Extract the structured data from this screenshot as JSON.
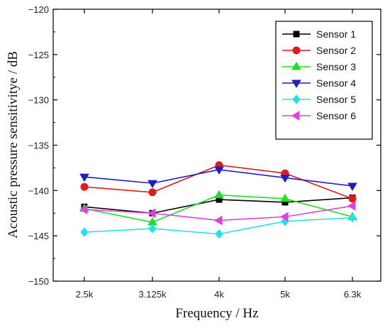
{
  "chart_data": {
    "type": "line",
    "title": "",
    "xlabel": "Frequency / Hz",
    "ylabel": "Acoustic pressure sensitivitye / dB",
    "categories": [
      "2.5k",
      "3.125k",
      "4k",
      "5k",
      "6.3k"
    ],
    "ylim": [
      -150,
      -120
    ],
    "yticks": [
      -150,
      -145,
      -140,
      -135,
      -130,
      -125,
      -120
    ],
    "ytick_labels": [
      "−150",
      "−145",
      "−140",
      "−135",
      "−130",
      "−125",
      "−120"
    ],
    "grid": false,
    "legend_position": "top-right",
    "series": [
      {
        "name": "Sensor 1",
        "color": "#000000",
        "marker": "square",
        "values": [
          -141.8,
          -142.5,
          -141.0,
          -141.3,
          -140.8
        ]
      },
      {
        "name": "Sensor 2",
        "color": "#e31a1c",
        "marker": "circle",
        "values": [
          -139.6,
          -140.2,
          -137.2,
          -138.1,
          -140.9
        ]
      },
      {
        "name": "Sensor 3",
        "color": "#22dd22",
        "marker": "triangle-up",
        "values": [
          -142.0,
          -143.5,
          -140.5,
          -140.9,
          -142.9
        ]
      },
      {
        "name": "Sensor 4",
        "color": "#1f1fbf",
        "marker": "triangle-down",
        "values": [
          -138.5,
          -139.2,
          -137.7,
          -138.6,
          -139.5
        ]
      },
      {
        "name": "Sensor 5",
        "color": "#22e0f0",
        "marker": "diamond",
        "values": [
          -144.6,
          -144.2,
          -144.8,
          -143.4,
          -143.0
        ]
      },
      {
        "name": "Sensor 6",
        "color": "#e040e0",
        "marker": "triangle-left",
        "values": [
          -142.1,
          -142.5,
          -143.3,
          -142.9,
          -141.7
        ]
      }
    ]
  }
}
